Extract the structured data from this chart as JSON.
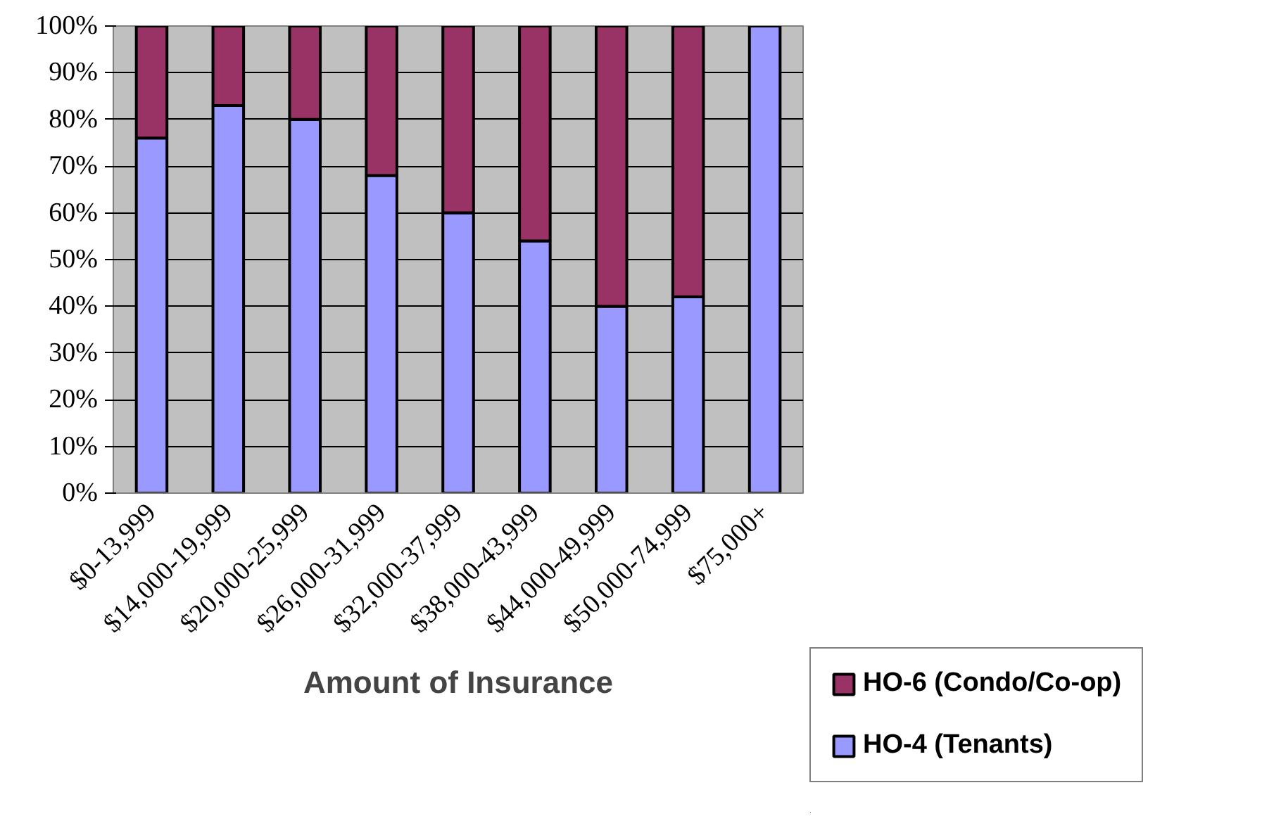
{
  "chart_data": {
    "type": "bar",
    "stacked": true,
    "xlabel": "Amount of Insurance",
    "categories": [
      "$0-13,999",
      "$14,000-19,999",
      "$20,000-25,999",
      "$26,000-31,999",
      "$32,000-37,999",
      "$38,000-43,999",
      "$44,000-49,999",
      "$50,000-74,999",
      "$75,000+"
    ],
    "series": [
      {
        "name": "HO-4 (Tenants)",
        "color": "#9999ff",
        "values": [
          76,
          83,
          80,
          68,
          60,
          54,
          40,
          42,
          100
        ]
      },
      {
        "name": "HO-6 (Condo/Co-op)",
        "color": "#993366",
        "values": [
          24,
          17,
          20,
          32,
          40,
          46,
          60,
          58,
          0
        ]
      }
    ],
    "ylim": [
      0,
      100
    ],
    "yticks": [
      {
        "value": 0,
        "label": "0%"
      },
      {
        "value": 10,
        "label": "10%"
      },
      {
        "value": 20,
        "label": "20%"
      },
      {
        "value": 30,
        "label": "30%"
      },
      {
        "value": 40,
        "label": "40%"
      },
      {
        "value": 50,
        "label": "50%"
      },
      {
        "value": 60,
        "label": "60%"
      },
      {
        "value": 70,
        "label": "70%"
      },
      {
        "value": 80,
        "label": "80%"
      },
      {
        "value": 90,
        "label": "90%"
      },
      {
        "value": 100,
        "label": "100%"
      }
    ],
    "grid": "y",
    "legend": "bottom right"
  }
}
